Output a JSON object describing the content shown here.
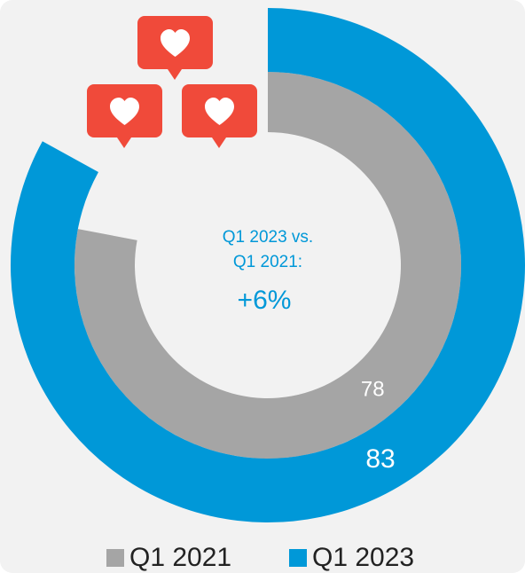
{
  "chart_data": {
    "type": "radial_bar",
    "ylim": [
      0,
      100
    ],
    "series": [
      {
        "name": "Q1 2021",
        "color": "#a5a5a5",
        "values": [
          78
        ]
      },
      {
        "name": "Q1 2023",
        "color": "#0098d8",
        "values": [
          83
        ]
      }
    ],
    "annotations": [
      "Q1 2023 vs.",
      "Q1 2021:",
      "+6%"
    ]
  }
}
